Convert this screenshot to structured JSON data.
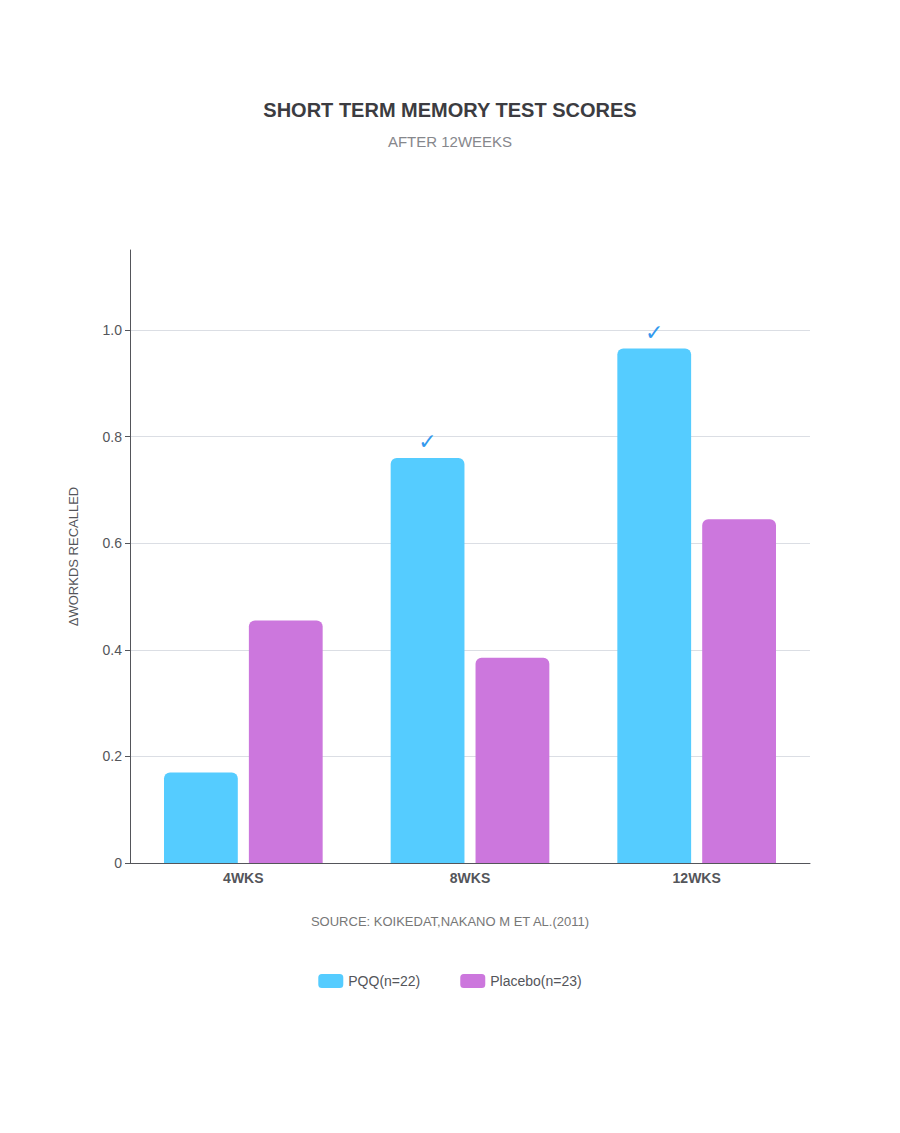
{
  "chart_data": {
    "type": "bar",
    "title": "SHORT TERM MEMORY TEST SCORES",
    "subtitle": "AFTER 12WEEKS",
    "source": "SOURCE: KOIKEDAT,NAKANO M ET AL.(2011)",
    "categories": [
      "4WKS",
      "8WKS",
      "12WKS"
    ],
    "series": [
      {
        "name": "PQQ(n=22)",
        "color": "#55ccff",
        "values": [
          0.17,
          0.76,
          0.965
        ]
      },
      {
        "name": "Placebo(n=23)",
        "color": "#cc77dd",
        "values": [
          0.455,
          0.385,
          0.645
        ]
      }
    ],
    "ylabel": "ΔWORKDS RECALLED",
    "ylim": [
      0,
      1.15
    ],
    "yticks": [
      0,
      0.2,
      0.4,
      0.6,
      0.8,
      {
        "value": 1.0,
        "label": "1.0"
      }
    ],
    "grid": true,
    "legend": "bottom",
    "annotations": [
      {
        "text": "✓",
        "category": "8WKS",
        "series": "PQQ(n=22)",
        "color": "#3399ee"
      },
      {
        "text": "✓",
        "category": "12WKS",
        "series": "PQQ(n=22)",
        "color": "#3399ee"
      }
    ]
  }
}
